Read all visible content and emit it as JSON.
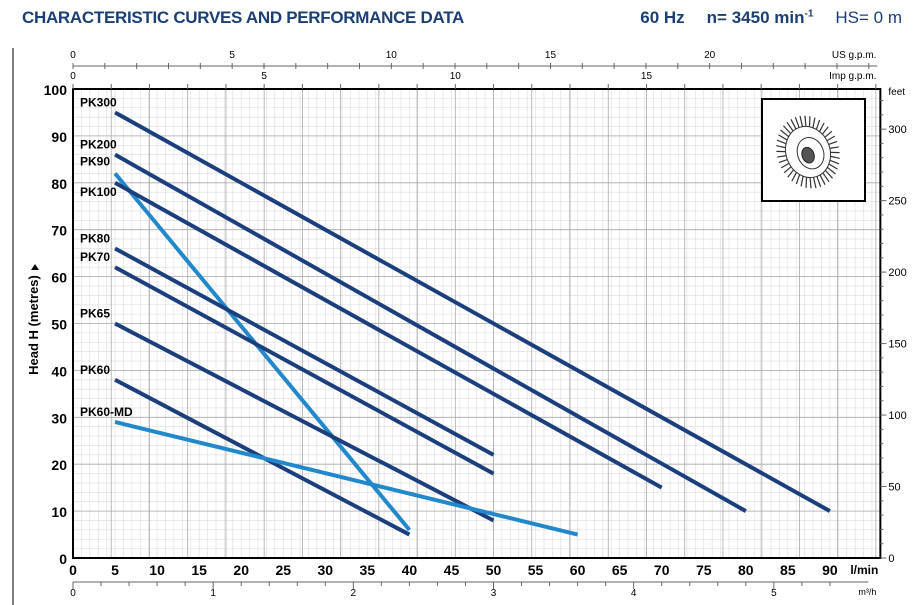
{
  "header": {
    "title": "CHARACTERISTIC CURVES AND PERFORMANCE DATA",
    "freq": "60 Hz",
    "speed": "n= 3450 min",
    "speed_sup": "-1",
    "hs": "HS= 0 m"
  },
  "chart_data": {
    "type": "line",
    "ylabel": "Head H (metres)",
    "xlabel": "l/min",
    "xlim": [
      0,
      96
    ],
    "ylim": [
      0,
      100
    ],
    "x_ticks": [
      0,
      5,
      10,
      15,
      20,
      25,
      30,
      35,
      40,
      45,
      50,
      55,
      60,
      65,
      70,
      75,
      80,
      85,
      90
    ],
    "y_ticks": [
      0,
      10,
      20,
      30,
      40,
      50,
      60,
      70,
      80,
      90,
      100
    ],
    "grid": true,
    "secondary_axes": {
      "us_gpm": {
        "label": "US g.p.m.",
        "ticks": [
          0,
          5,
          10,
          15,
          20
        ]
      },
      "imp_gpm": {
        "label": "Imp g.p.m.",
        "ticks": [
          0,
          5,
          10,
          15
        ]
      },
      "m3h": {
        "label": "m³/h",
        "ticks": [
          0,
          1,
          2,
          3,
          4,
          5
        ]
      },
      "feet": {
        "label": "feet",
        "ticks": [
          0,
          50,
          100,
          150,
          200,
          250,
          300
        ]
      }
    },
    "series": [
      {
        "name": "PK300",
        "color": "#1b3f7c",
        "x": [
          5,
          90
        ],
        "y": [
          95,
          10
        ]
      },
      {
        "name": "PK200",
        "color": "#1b3f7c",
        "x": [
          5,
          80
        ],
        "y": [
          86,
          10
        ]
      },
      {
        "name": "PK90",
        "color": "#2188cc",
        "x": [
          5,
          40
        ],
        "y": [
          82,
          6
        ]
      },
      {
        "name": "PK100",
        "color": "#1b3f7c",
        "x": [
          5,
          70
        ],
        "y": [
          80,
          15
        ]
      },
      {
        "name": "PK80",
        "color": "#1b3f7c",
        "x": [
          5,
          50
        ],
        "y": [
          66,
          22
        ]
      },
      {
        "name": "PK70",
        "color": "#1b3f7c",
        "x": [
          5,
          50
        ],
        "y": [
          62,
          18
        ]
      },
      {
        "name": "PK65",
        "color": "#1b3f7c",
        "x": [
          5,
          50
        ],
        "y": [
          50,
          8
        ]
      },
      {
        "name": "PK60",
        "color": "#1b3f7c",
        "x": [
          5,
          40
        ],
        "y": [
          38,
          5
        ]
      },
      {
        "name": "PK60-MD",
        "color": "#2188cc",
        "x": [
          5,
          60
        ],
        "y": [
          29,
          5
        ]
      }
    ]
  }
}
